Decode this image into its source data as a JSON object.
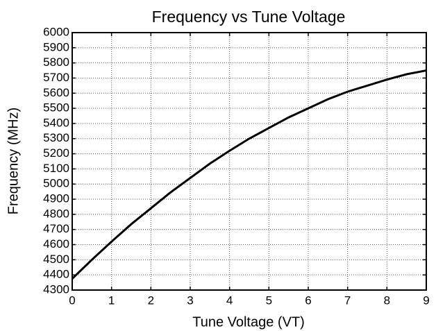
{
  "chart_data": {
    "type": "line",
    "title": "Frequency vs Tune Voltage",
    "xlabel": "Tune Voltage (VT)",
    "ylabel": "Frequency (MHz)",
    "x": [
      0,
      0.5,
      1,
      1.5,
      2,
      2.5,
      3,
      3.5,
      4,
      4.5,
      5,
      5.5,
      6,
      6.5,
      7,
      7.5,
      8,
      8.5,
      9
    ],
    "values": [
      4375,
      4500,
      4620,
      4735,
      4840,
      4945,
      5040,
      5135,
      5220,
      5300,
      5370,
      5440,
      5500,
      5560,
      5610,
      5650,
      5690,
      5725,
      5750
    ],
    "color": "#000000",
    "xlim": [
      0,
      9
    ],
    "xticks": [
      0,
      1,
      2,
      3,
      4,
      5,
      6,
      7,
      8,
      9
    ],
    "ylim": [
      4300,
      6000
    ],
    "yticks": [
      4300,
      4400,
      4500,
      4600,
      4700,
      4800,
      4900,
      5000,
      5100,
      5200,
      5300,
      5400,
      5500,
      5600,
      5700,
      5800,
      5900,
      6000
    ],
    "grid": true
  }
}
